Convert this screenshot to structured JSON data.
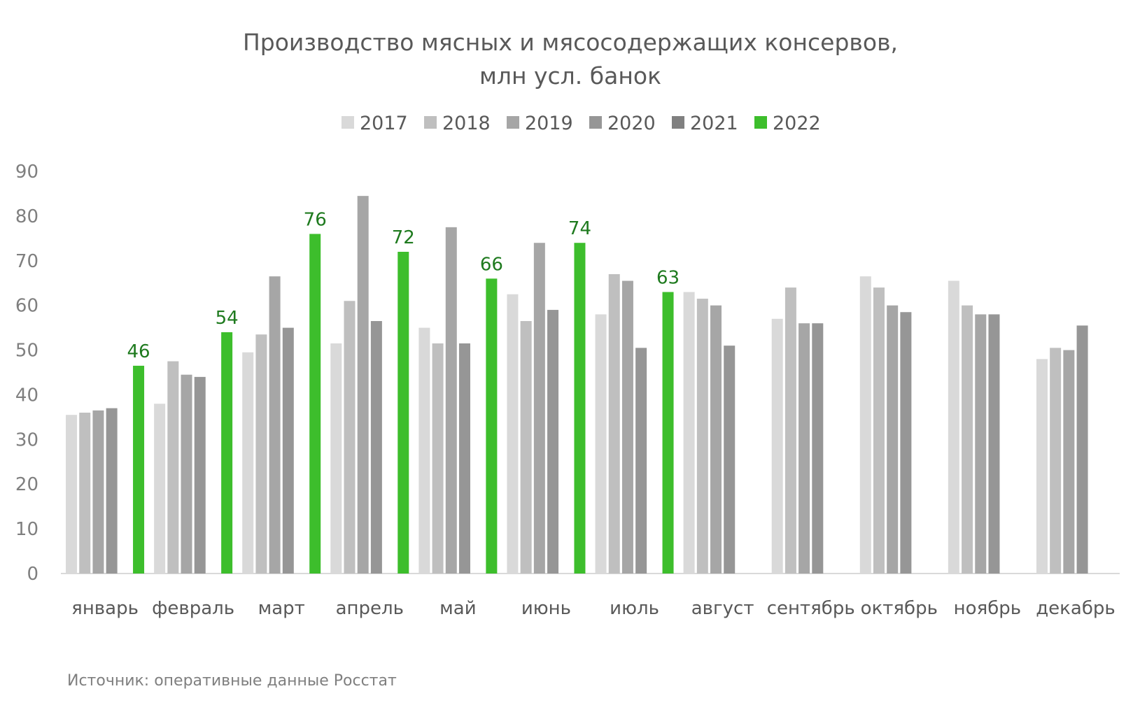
{
  "chart_data": {
    "type": "bar",
    "title_line1": "Производство мясных и мясосодержащих консервов,",
    "title_line2": "млн усл. банок",
    "xlabel": "",
    "ylabel": "",
    "ylim": [
      0,
      90
    ],
    "yticks": [
      0,
      10,
      20,
      30,
      40,
      50,
      60,
      70,
      80,
      90
    ],
    "grid": false,
    "legend_position": "top-center",
    "categories": [
      "январь",
      "февраль",
      "март",
      "апрель",
      "май",
      "июнь",
      "июль",
      "август",
      "сентябрь",
      "октябрь",
      "ноябрь",
      "декабрь"
    ],
    "series": [
      {
        "name": "2017",
        "color": "#d9d9d9",
        "values": [
          35.5,
          38,
          49.5,
          51.5,
          55,
          62.5,
          58,
          63,
          57,
          66.5,
          65.5,
          48
        ]
      },
      {
        "name": "2018",
        "color": "#bfbfbf",
        "values": [
          36,
          47.5,
          53.5,
          61,
          51.5,
          56.5,
          67,
          61.5,
          64,
          64,
          60,
          50.5
        ]
      },
      {
        "name": "2019",
        "color": "#a6a6a6",
        "values": [
          36.5,
          44.5,
          66.5,
          84.5,
          77.5,
          74,
          65.5,
          60,
          56,
          60,
          58,
          50
        ]
      },
      {
        "name": "2020",
        "color": "#969696",
        "values": [
          37,
          44,
          55,
          56.5,
          51.5,
          59,
          50.5,
          51,
          56,
          58.5,
          58,
          55.5
        ]
      },
      {
        "name": "2021",
        "color": "#808080",
        "values": [
          null,
          null,
          null,
          null,
          null,
          null,
          null,
          null,
          null,
          null,
          null,
          null
        ]
      },
      {
        "name": "2022",
        "color": "#3dbe2c",
        "values": [
          46.5,
          54,
          76,
          72,
          66,
          74,
          63,
          null,
          null,
          null,
          null,
          null
        ]
      }
    ],
    "data_labels_2022": [
      "46",
      "54",
      "76",
      "72",
      "66",
      "74",
      "63"
    ],
    "source": "Источник: оперативные данные Росстат"
  }
}
